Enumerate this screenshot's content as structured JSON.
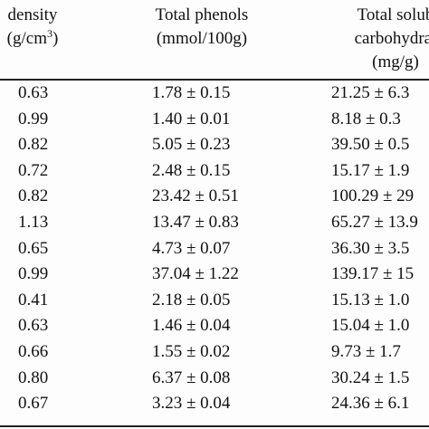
{
  "header": {
    "density_line1": "density",
    "density_line2_prefix": "(g/cm",
    "density_line2_sup": "3",
    "density_line2_suffix": ")",
    "phenols_line1": "Total phenols",
    "phenols_line2": "(mmol/100g)",
    "carbo_line1": "Total solub",
    "carbo_line2": "carbohydrat",
    "carbo_line3": "(mg/g)"
  },
  "rows": [
    {
      "density": "0.63",
      "phenols": "1.78 ± 0.15",
      "carbo": "21.25 ± 6.3"
    },
    {
      "density": "0.99",
      "phenols": "1.40 ± 0.01",
      "carbo": "8.18 ± 0.3"
    },
    {
      "density": "0.82",
      "phenols": "5.05 ± 0.23",
      "carbo": "39.50 ± 0.5"
    },
    {
      "density": "0.72",
      "phenols": "2.48 ± 0.15",
      "carbo": "15.17 ± 1.9"
    },
    {
      "density": "0.82",
      "phenols": "23.42 ± 0.51",
      "carbo": "100.29 ± 29"
    },
    {
      "density": "1.13",
      "phenols": "13.47 ± 0.83",
      "carbo": "65.27 ± 13.9"
    },
    {
      "density": "0.65",
      "phenols": "4.73 ± 0.07",
      "carbo": "36.30 ± 3.5"
    },
    {
      "density": "0.99",
      "phenols": "37.04 ± 1.22",
      "carbo": "139.17 ± 15"
    },
    {
      "density": "0.41",
      "phenols": "2.18 ± 0.05",
      "carbo": "15.13 ± 1.0"
    },
    {
      "density": "0.63",
      "phenols": "1.46 ± 0.04",
      "carbo": "15.04 ± 1.0"
    },
    {
      "density": "0.66",
      "phenols": "1.55 ± 0.02",
      "carbo": "9.73 ± 1.7"
    },
    {
      "density": "0.80",
      "phenols": "6.37 ± 0.08",
      "carbo": "30.24 ± 1.5"
    },
    {
      "density": "0.67",
      "phenols": "3.23 ± 0.04",
      "carbo": "24.36 ± 6.1"
    }
  ]
}
